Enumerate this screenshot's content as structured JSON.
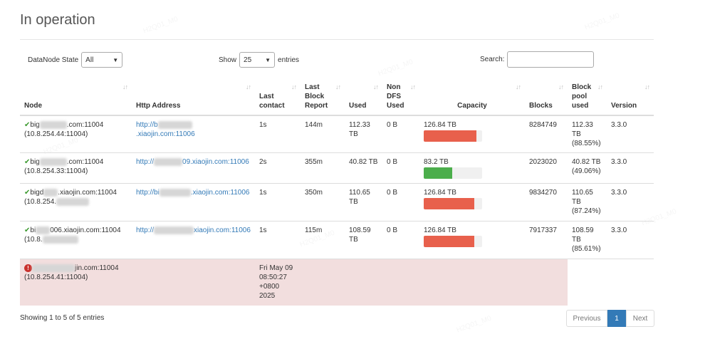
{
  "title": "In operation",
  "controls": {
    "state_label": "DataNode State",
    "state_value": "All",
    "show_label": "Show",
    "show_value": "25",
    "entries_label": "entries",
    "search_label": "Search:"
  },
  "table": {
    "headers": {
      "node": "Node",
      "http": "Http Address",
      "last_contact": "Last contact",
      "last_block_report": "Last Block Report",
      "used": "Used",
      "non_dfs_used": "Non DFS Used",
      "capacity": "Capacity",
      "blocks": "Blocks",
      "block_pool_used": "Block pool used",
      "version": "Version"
    },
    "rows": [
      {
        "node_prefix": "big",
        "node_suffix": ".com:11004",
        "node_ip": "(10.8.254.44:11004)",
        "http_prefix": "http://b",
        "http_suffix": ".xiaojin.com:11006",
        "last_contact": "1s",
        "last_block_report": "144m",
        "used": "112.33 TB",
        "non_dfs_used": "0 B",
        "capacity": "126.84 TB",
        "capacity_fill": 0.9,
        "blocks": "8284749",
        "block_pool_used": "112.33 TB (88.55%)",
        "version": "3.3.0"
      },
      {
        "node_prefix": "big",
        "node_suffix": ".com:11004",
        "node_ip": "(10.8.254.33:11004)",
        "http_prefix": "http://",
        "http_suffix": "09.xiaojin.com:11006",
        "last_contact": "2s",
        "last_block_report": "355m",
        "used": "40.82 TB",
        "non_dfs_used": "0 B",
        "capacity": "83.2 TB",
        "capacity_fill": 0.49,
        "blocks": "2023020",
        "block_pool_used": "40.82 TB (49.06%)",
        "version": "3.3.0"
      },
      {
        "node_prefix": "bigd",
        "node_suffix": ".xiaojin.com:11004",
        "node_ip": "(10.8.254.",
        "http_prefix": "http://bi",
        "http_suffix": ".xiaojin.com:11006",
        "last_contact": "1s",
        "last_block_report": "350m",
        "used": "110.65 TB",
        "non_dfs_used": "0 B",
        "capacity": "126.84 TB",
        "capacity_fill": 0.87,
        "blocks": "9834270",
        "block_pool_used": "110.65 TB (87.24%)",
        "version": "3.3.0"
      },
      {
        "node_prefix": "bi",
        "node_suffix": "006.xiaojin.com:11004",
        "node_ip": "(10.8.",
        "http_prefix": "http://",
        "http_suffix": "xiaojin.com:11006",
        "last_contact": "1s",
        "last_block_report": "115m",
        "used": "108.59 TB",
        "non_dfs_used": "0 B",
        "capacity": "126.84 TB",
        "capacity_fill": 0.86,
        "blocks": "7917337",
        "block_pool_used": "108.59 TB (85.61%)",
        "version": "3.3.0"
      }
    ],
    "dead_row": {
      "node_suffix": "jin.com:11004",
      "node_ip": "(10.8.254.41:11004)",
      "last_contact": "Fri May 09 08:50:27 +0800 2025"
    }
  },
  "footer": {
    "info": "Showing 1 to 5 of 5 entries",
    "previous": "Previous",
    "current_page": "1",
    "next": "Next"
  },
  "watermark": "H2Q01_M0",
  "colors": {
    "link": "#337ab7",
    "bar_high": "#e8604c",
    "bar_ok": "#4cae4c",
    "dead_row": "#f2dede",
    "check": "#3c9a2f"
  }
}
